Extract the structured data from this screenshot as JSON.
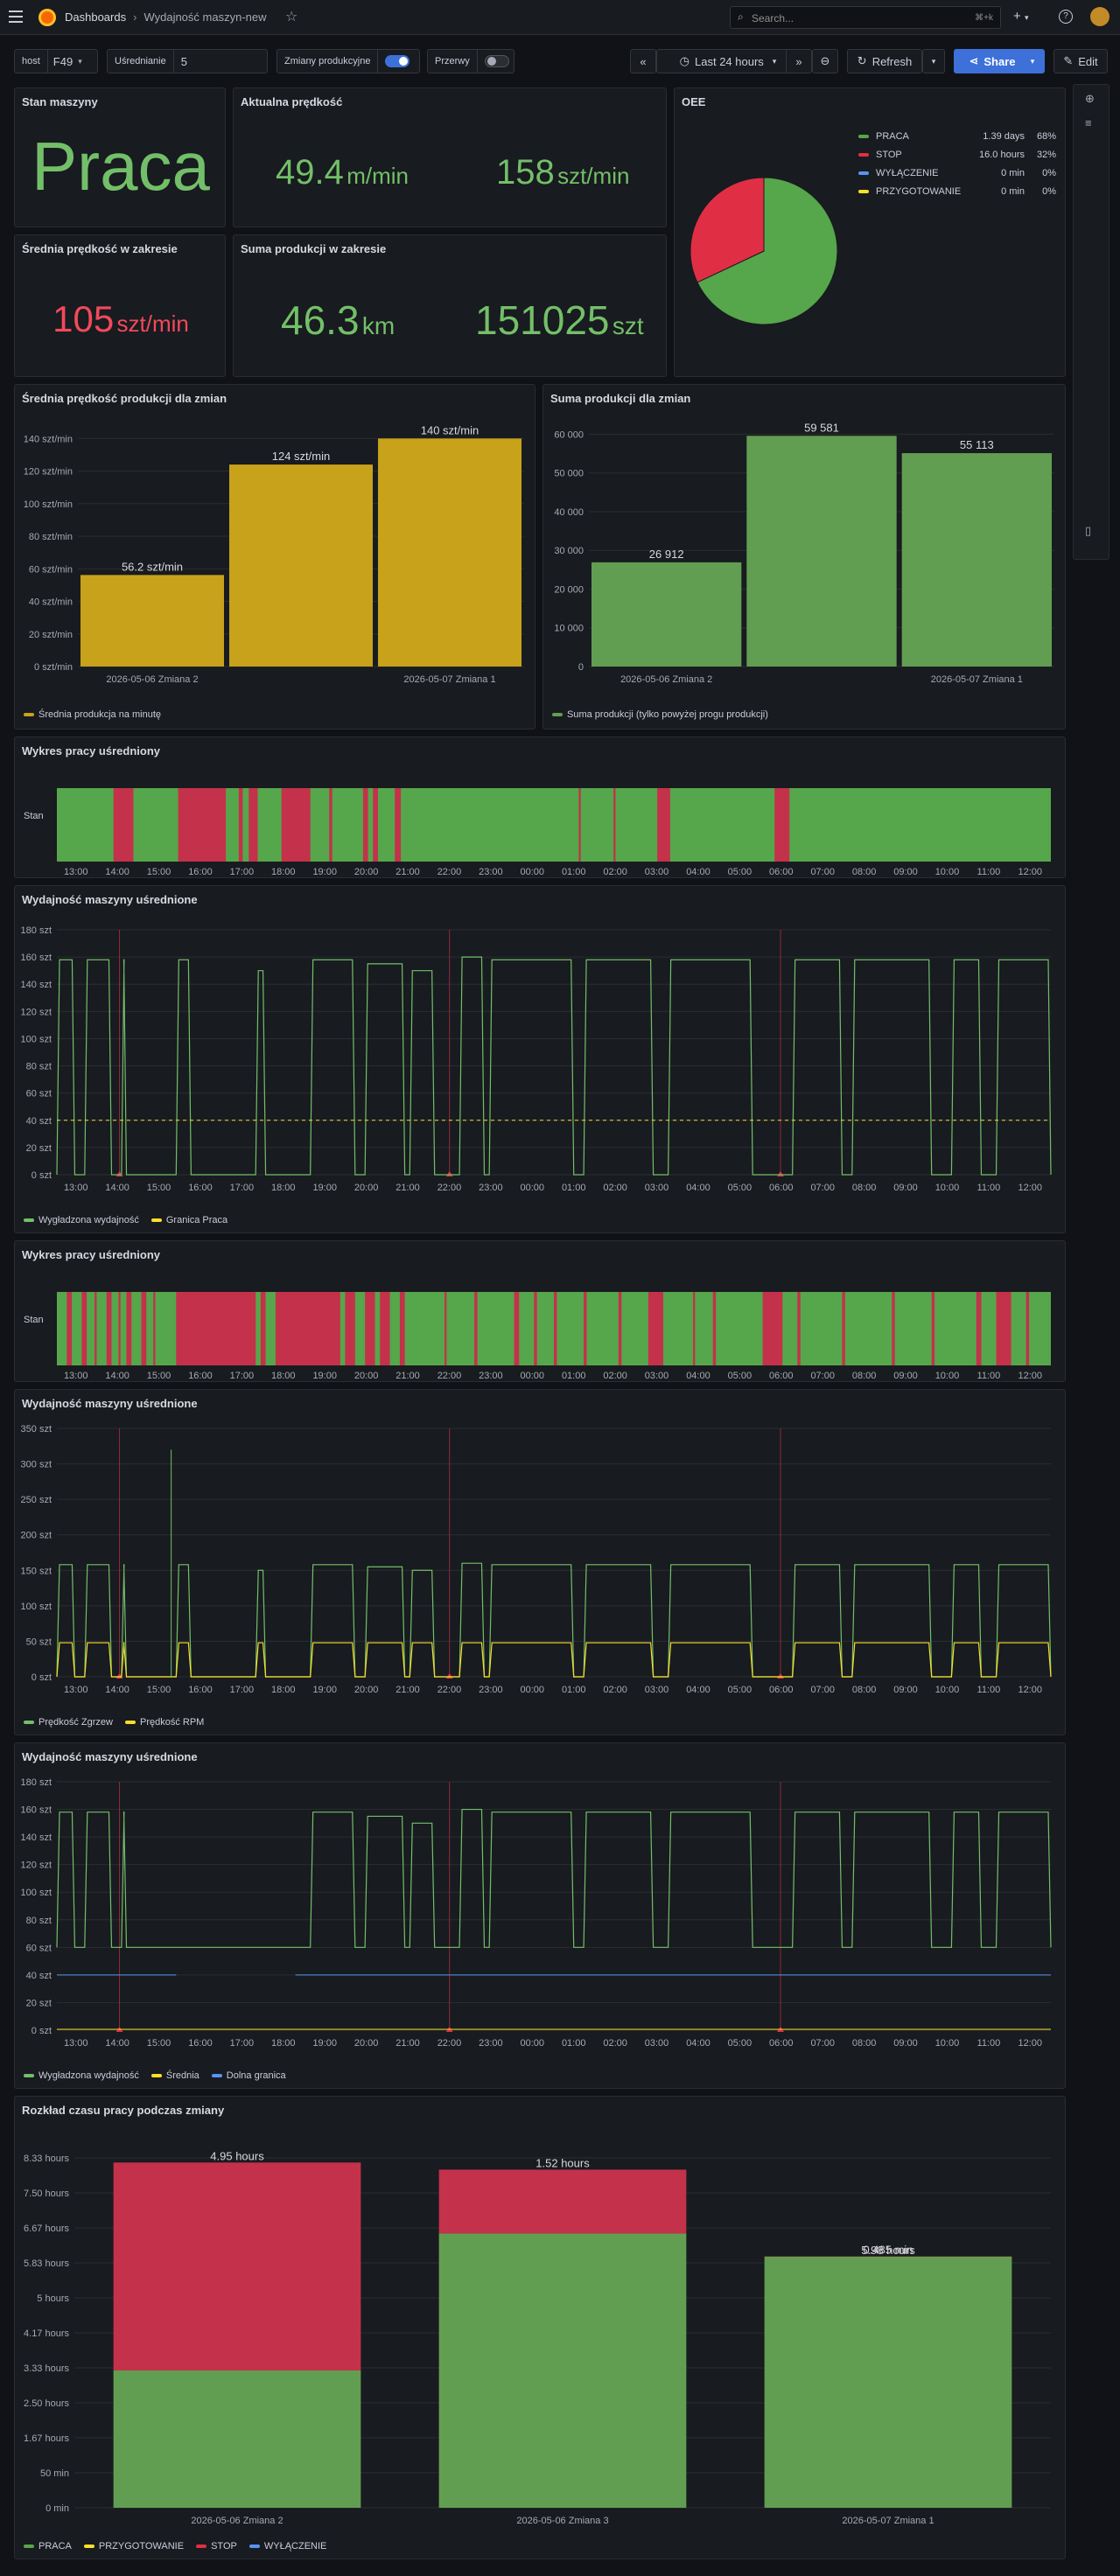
{
  "topbar": {
    "menu_icon": "hamburger-icon",
    "breadcrumb_root": "Dashboards",
    "breadcrumb_sep": "›",
    "breadcrumb_page": "Wydajność maszyn-new",
    "search_placeholder": "Search...",
    "search_shortcut": "⌘+k",
    "plus_label": "+",
    "help_icon": "help-icon"
  },
  "controls": {
    "host_label": "host",
    "host_value": "F49",
    "avg_label": "Uśrednianie",
    "avg_value": "5",
    "shifts_label": "Zmiany produkcyjne",
    "shifts_on": true,
    "breaks_label": "Przerwy",
    "breaks_on": false,
    "time_range": "Last 24 hours",
    "refresh_label": "Refresh",
    "share_label": "Share",
    "edit_label": "Edit"
  },
  "stat_machine_state": {
    "title": "Stan maszyny",
    "value": "Praca"
  },
  "stat_current_speed": {
    "title": "Aktualna prędkość",
    "value1": "49.4",
    "unit1": "m/min",
    "value2": "158",
    "unit2": "szt/min"
  },
  "stat_avg_speed": {
    "title": "Średnia prędkość w zakresie",
    "value": "105",
    "unit": "szt/min"
  },
  "stat_total": {
    "title": "Suma produkcji w zakresie",
    "value1": "46.3",
    "unit1": "km",
    "value2": "151025",
    "unit2": "szt"
  },
  "oee": {
    "title": "OEE",
    "legend": [
      {
        "name": "PRACA",
        "value": "1.39 days",
        "pct": "68%",
        "color": "#56a64b"
      },
      {
        "name": "STOP",
        "value": "16.0 hours",
        "pct": "32%",
        "color": "#e02f44"
      },
      {
        "name": "WYŁĄCZENIE",
        "value": "0 min",
        "pct": "0%",
        "color": "#5794f2"
      },
      {
        "name": "PRZYGOTOWANIE",
        "value": "0 min",
        "pct": "0%",
        "color": "#fade2a"
      }
    ]
  },
  "shift_speed": {
    "title": "Średnia prędkość produkcji dla zmian",
    "legend": "Średnia produkcja na minutę",
    "color": "#c9a21c"
  },
  "shift_sum": {
    "title": "Suma produkcji dla zmian",
    "legend": "Suma produkcji (tylko powyżej progu produkcji)",
    "color": "#629e51"
  },
  "state_timeline_1": {
    "title": "Wykres pracy uśredniony",
    "row_label": "Stan"
  },
  "state_timeline_2": {
    "title": "Wykres pracy uśredniony",
    "row_label": "Stan"
  },
  "perf_1": {
    "title": "Wydajność maszyny uśrednione",
    "legend": [
      "Wygładzona wydajność",
      "Granica Praca"
    ]
  },
  "perf_2": {
    "title": "Wydajność maszyny uśrednione",
    "legend": [
      "Prędkość Zgrzew",
      "Prędkość RPM"
    ]
  },
  "perf_3": {
    "title": "Wydajność maszyny uśrednione",
    "legend": [
      "Wygładzona wydajność",
      "Średnia",
      "Dolna granica"
    ]
  },
  "shift_time": {
    "title": "Rozkład czasu pracy podczas zmiany",
    "legend": [
      "PRACA",
      "PRZYGOTOWANIE",
      "STOP",
      "WYŁĄCZENIE"
    ]
  },
  "colors": {
    "ok": "#73bf69",
    "bad": "#f2495c",
    "green_state": "#56a64b",
    "red_state": "#c4314b",
    "yellow": "#fade2a",
    "blue": "#5794f2"
  },
  "time_ticks": [
    "13:00",
    "14:00",
    "15:00",
    "16:00",
    "17:00",
    "18:00",
    "19:00",
    "20:00",
    "21:00",
    "22:00",
    "23:00",
    "00:00",
    "01:00",
    "02:00",
    "03:00",
    "04:00",
    "05:00",
    "06:00",
    "07:00",
    "08:00",
    "09:00",
    "10:00",
    "11:00",
    "12:00"
  ],
  "chart_data": [
    {
      "type": "bar",
      "title": "Średnia prędkość produkcji dla zmian",
      "categories": [
        "2026-05-06 Zmiana 2",
        "",
        "2026-05-07 Zmiana 1"
      ],
      "values": [
        56.2,
        124,
        140
      ],
      "value_labels": [
        "56.2 szt/min",
        "124 szt/min",
        "140 szt/min"
      ],
      "y_ticks": [
        "0 szt/min",
        "20 szt/min",
        "40 szt/min",
        "60 szt/min",
        "80 szt/min",
        "100 szt/min",
        "120 szt/min",
        "140 szt/min"
      ],
      "ylim": [
        0,
        145
      ]
    },
    {
      "type": "bar",
      "title": "Suma produkcji dla zmian",
      "categories": [
        "2026-05-06 Zmiana 2",
        "",
        "2026-05-07 Zmiana 1"
      ],
      "values": [
        26912,
        59581,
        55113
      ],
      "value_labels": [
        "26 912",
        "59 581",
        "55 113"
      ],
      "y_ticks": [
        "0",
        "10 000",
        "20 000",
        "30 000",
        "40 000",
        "50 000",
        "60 000"
      ],
      "ylim": [
        0,
        61000
      ]
    },
    {
      "type": "pie",
      "title": "OEE",
      "labels": [
        "PRACA",
        "STOP",
        "WYŁĄCZENIE",
        "PRZYGOTOWANIE"
      ],
      "values": [
        68,
        32,
        0,
        0
      ]
    },
    {
      "type": "bar",
      "stacked": true,
      "title": "Rozkład czasu pracy podczas zmiany",
      "categories": [
        "2026-05-06 Zmiana 2",
        "2026-05-06 Zmiana 3",
        "2026-05-07 Zmiana 1"
      ],
      "series": [
        {
          "name": "PRACA",
          "values": [
            3.27,
            6.53,
            5.98
          ],
          "labels": [
            "3.27 hours",
            "6.53 hours",
            "5.98 hours"
          ]
        },
        {
          "name": "STOP",
          "values": [
            4.95,
            1.52,
            0.008
          ],
          "labels": [
            "4.95 hours",
            "1.52 hours",
            "0.485 min"
          ]
        }
      ],
      "y_ticks": [
        "0 min",
        "50 min",
        "1.67 hours",
        "2.50 hours",
        "3.33 hours",
        "4.17 hours",
        "5 hours",
        "5.83 hours",
        "6.67 hours",
        "7.50 hours",
        "8.33 hours"
      ],
      "ylim": [
        0,
        8.33
      ]
    },
    {
      "type": "line",
      "title": "Wydajność maszyny uśrednione",
      "y_ticks": [
        "0 szt",
        "20 szt",
        "40 szt",
        "60 szt",
        "80 szt",
        "100 szt",
        "120 szt",
        "140 szt",
        "160 szt",
        "180 szt"
      ],
      "ylim": [
        0,
        180
      ],
      "threshold": 40
    },
    {
      "type": "line",
      "title": "Wydajność maszyny uśrednione",
      "y_ticks": [
        "0 szt",
        "50 szt",
        "100 szt",
        "150 szt",
        "200 szt",
        "250 szt",
        "300 szt",
        "350 szt"
      ],
      "ylim": [
        0,
        350
      ]
    },
    {
      "type": "line",
      "title": "Wydajność maszyny uśrednione",
      "y_ticks": [
        "0 szt",
        "20 szt",
        "40 szt",
        "60 szt",
        "80 szt",
        "100 szt",
        "120 szt",
        "140 szt",
        "160 szt",
        "180 szt"
      ],
      "ylim": [
        0,
        180
      ],
      "lower_bound": 40
    }
  ]
}
